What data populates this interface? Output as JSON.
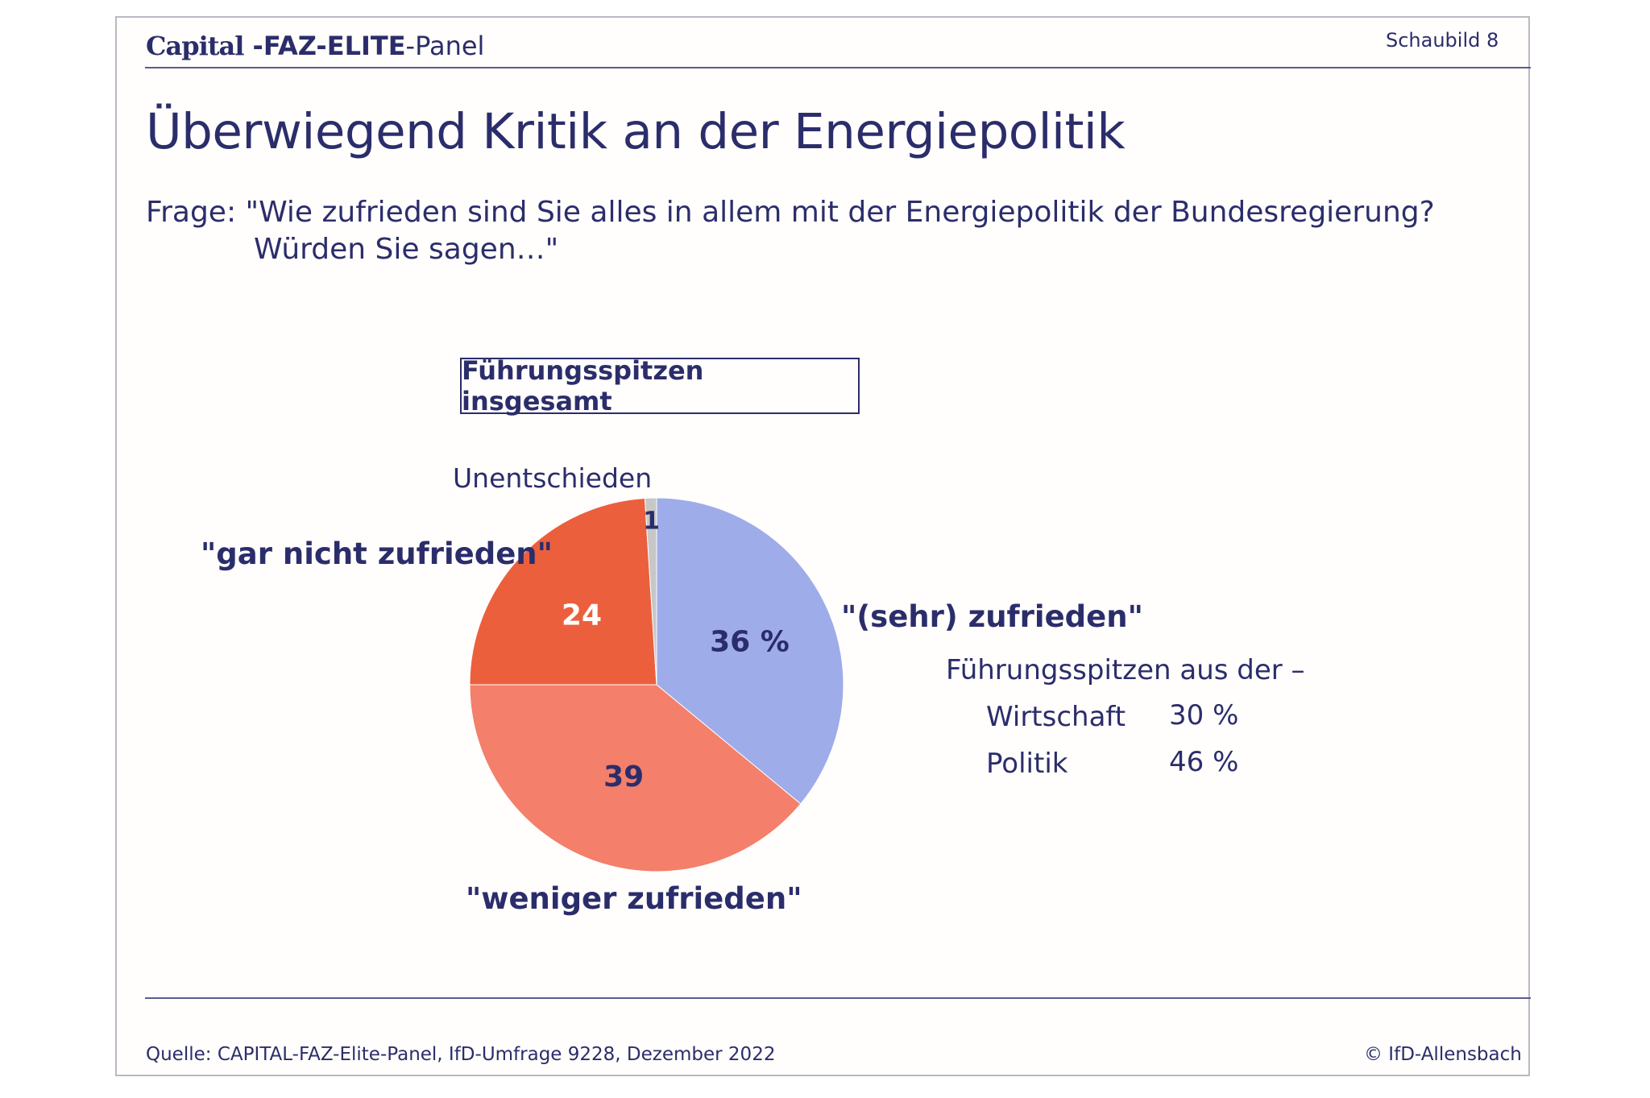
{
  "header": {
    "brand_capital": "Capital",
    "brand_faz": " -FAZ-ELITE",
    "brand_panel": "-Panel",
    "slide_number": "Schaubild 8"
  },
  "title": "Überwiegend Kritik an der Energiepolitik",
  "question": {
    "line1": "Frage: \"Wie zufrieden sind Sie alles in allem mit der Energiepolitik der Bundesregierung?",
    "line2": "Würden Sie sagen…\""
  },
  "group_label": "Führungsspitzen insgesamt",
  "chart_data": {
    "type": "pie",
    "categories": [
      "\"(sehr) zufrieden\"",
      "\"weniger zufrieden\"",
      "\"gar nicht zufrieden\"",
      "Unentschieden"
    ],
    "values": [
      36,
      39,
      24,
      1
    ],
    "data_labels": [
      "36 %",
      "39",
      "24",
      "1"
    ],
    "colors": [
      "#9facea",
      "#f47f6b",
      "#ec5f3d",
      "#c7c7c7"
    ],
    "start": "12 o'clock, clockwise"
  },
  "side_breakdown": {
    "heading": "Führungsspitzen aus der –",
    "rows": [
      {
        "label": "Wirtschaft",
        "value": "30 %"
      },
      {
        "label": "Politik",
        "value": "46 %"
      }
    ]
  },
  "footer": {
    "source": "Quelle: CAPITAL-FAZ-Elite-Panel, IfD-Umfrage 9228, Dezember 2022",
    "copyright": "© IfD-Allensbach"
  }
}
